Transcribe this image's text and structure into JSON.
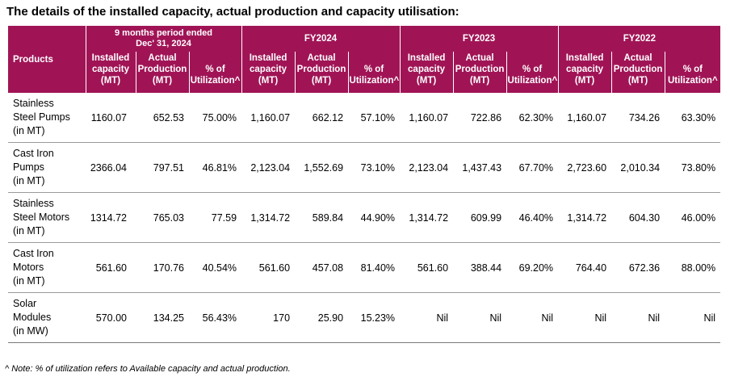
{
  "title": "The details of the installed capacity, actual production and capacity utilisation:",
  "header": {
    "products": "Products",
    "period_line1": "9 months period ended",
    "period_line2": "Dec' 31, 2024",
    "fy2024": "FY2024",
    "fy2023": "FY2023",
    "fy2022": "FY2022",
    "installed": [
      "Installed",
      "capacity",
      "(MT)"
    ],
    "actual": [
      "Actual",
      "Production",
      "(MT)"
    ],
    "util": [
      "% of",
      "Utilization^"
    ]
  },
  "rows": [
    {
      "product": [
        "Stainless",
        "Steel Pumps",
        "(in MT)"
      ],
      "values": [
        "1160.07",
        "652.53",
        "75.00%",
        "1,160.07",
        "662.12",
        "57.10%",
        "1,160.07",
        "722.86",
        "62.30%",
        "1,160.07",
        "734.26",
        "63.30%"
      ]
    },
    {
      "product": [
        "Cast Iron",
        "Pumps",
        "(in MT)"
      ],
      "values": [
        "2366.04",
        "797.51",
        "46.81%",
        "2,123.04",
        "1,552.69",
        "73.10%",
        "2,123.04",
        "1,437.43",
        "67.70%",
        "2,723.60",
        "2,010.34",
        "73.80%"
      ]
    },
    {
      "product": [
        "Stainless",
        "Steel Motors",
        "(in MT)"
      ],
      "values": [
        "1314.72",
        "765.03",
        "77.59",
        "1,314.72",
        "589.84",
        "44.90%",
        "1,314.72",
        "609.99",
        "46.40%",
        "1,314.72",
        "604.30",
        "46.00%"
      ]
    },
    {
      "product": [
        "Cast Iron",
        "Motors",
        "(in MT)"
      ],
      "values": [
        "561.60",
        "170.76",
        "40.54%",
        "561.60",
        "457.08",
        "81.40%",
        "561.60",
        "388.44",
        "69.20%",
        "764.40",
        "672.36",
        "88.00%"
      ]
    },
    {
      "product": [
        "Solar",
        "Modules",
        "(in MW)"
      ],
      "values": [
        "570.00",
        "134.25",
        "56.43%",
        "170",
        "25.90",
        "15.23%",
        "Nil",
        "Nil",
        "Nil",
        "Nil",
        "Nil",
        "Nil"
      ]
    }
  ],
  "note": "^ Note: % of utilization refers to Available capacity and actual production.",
  "colors": {
    "header_bg": "#a01456",
    "header_text": "#ffffff"
  }
}
